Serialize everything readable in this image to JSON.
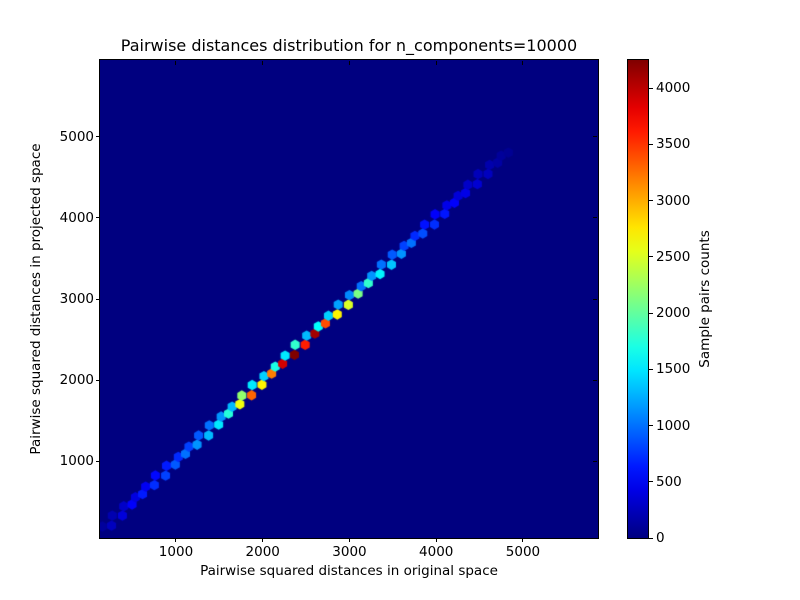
{
  "chart_data": {
    "type": "hexbin",
    "title": "Pairwise distances distribution for n_components=10000",
    "xlabel": "Pairwise squared distances in original space",
    "ylabel": "Pairwise squared distances in projected space",
    "xlim": [
      124,
      5865
    ],
    "ylim": [
      50,
      5950
    ],
    "x_ticks": [
      1000,
      2000,
      3000,
      4000,
      5000
    ],
    "y_ticks": [
      1000,
      2000,
      3000,
      4000,
      5000
    ],
    "grid": false,
    "colormap": "jet",
    "zero_count_color": "#000080",
    "legend_position": "none",
    "colorbar": {
      "label": "Sample pairs counts",
      "ticks": [
        0,
        500,
        1000,
        1500,
        2000,
        2500,
        3000,
        3500,
        4000
      ],
      "vmin": 0,
      "vmax": 4250,
      "orientation": "vertical"
    },
    "diagonal_bins_xy_equal": true,
    "bins": [
      [
        170,
        120
      ],
      [
        232,
        260
      ],
      [
        294,
        200
      ],
      [
        356,
        380
      ],
      [
        418,
        300
      ],
      [
        480,
        520
      ],
      [
        542,
        400
      ],
      [
        604,
        640
      ],
      [
        666,
        480
      ],
      [
        728,
        720
      ],
      [
        790,
        560
      ],
      [
        852,
        800
      ],
      [
        914,
        640
      ],
      [
        976,
        900
      ],
      [
        1038,
        700
      ],
      [
        1100,
        1000
      ],
      [
        1162,
        800
      ],
      [
        1224,
        1150
      ],
      [
        1286,
        900
      ],
      [
        1348,
        1300
      ],
      [
        1410,
        1000
      ],
      [
        1472,
        1500
      ],
      [
        1534,
        1150
      ],
      [
        1596,
        1750
      ],
      [
        1658,
        1300
      ],
      [
        1720,
        2600
      ],
      [
        1782,
        2200
      ],
      [
        1844,
        3300
      ],
      [
        1906,
        1500
      ],
      [
        1968,
        2700
      ],
      [
        2030,
        1400
      ],
      [
        2092,
        3200
      ],
      [
        2154,
        1700
      ],
      [
        2216,
        3900
      ],
      [
        2278,
        1500
      ],
      [
        2340,
        4250
      ],
      [
        2402,
        1800
      ],
      [
        2464,
        3600
      ],
      [
        2526,
        1300
      ],
      [
        2588,
        4100
      ],
      [
        2650,
        1600
      ],
      [
        2712,
        3400
      ],
      [
        2774,
        1400
      ],
      [
        2836,
        2700
      ],
      [
        2898,
        1200
      ],
      [
        2960,
        2500
      ],
      [
        3022,
        1100
      ],
      [
        3084,
        2100
      ],
      [
        3146,
        1000
      ],
      [
        3208,
        1800
      ],
      [
        3270,
        1150
      ],
      [
        3332,
        1550
      ],
      [
        3394,
        1000
      ],
      [
        3456,
        1350
      ],
      [
        3518,
        900
      ],
      [
        3580,
        1150
      ],
      [
        3642,
        800
      ],
      [
        3704,
        1000
      ],
      [
        3766,
        700
      ],
      [
        3828,
        850
      ],
      [
        3890,
        600
      ],
      [
        3952,
        720
      ],
      [
        4014,
        520
      ],
      [
        4076,
        620
      ],
      [
        4138,
        440
      ],
      [
        4200,
        520
      ],
      [
        4262,
        370
      ],
      [
        4324,
        430
      ],
      [
        4386,
        300
      ],
      [
        4448,
        340
      ],
      [
        4510,
        240
      ],
      [
        4572,
        260
      ],
      [
        4634,
        190
      ],
      [
        4696,
        150
      ],
      [
        4758,
        110
      ],
      [
        4820,
        80
      ]
    ]
  }
}
